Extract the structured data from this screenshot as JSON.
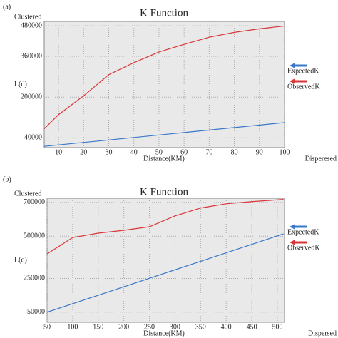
{
  "chart_data": [
    {
      "type": "line",
      "panel_label": "(a)",
      "title": "K Function",
      "y_top_label": "Clustered",
      "x_end_label": "Disperesed",
      "ylabel": "L(d)",
      "xlabel": "Distance(KM)",
      "xlim": [
        4.3,
        100
      ],
      "xticks": [
        10,
        20,
        30,
        40,
        50,
        60,
        70,
        80,
        90,
        100
      ],
      "ylim": [
        2000,
        497000
      ],
      "yticks": [
        40000,
        200000,
        360000,
        480000
      ],
      "grid": true,
      "series": [
        {
          "name": "ExpectedK",
          "color": "#3a78c9",
          "x": [
            4.3,
            100
          ],
          "values": [
            7000,
            100000
          ]
        },
        {
          "name": "ObservedK",
          "color": "#d9363a",
          "x": [
            4.3,
            10,
            20,
            30,
            40,
            50,
            60,
            70,
            80,
            90,
            100
          ],
          "values": [
            76000,
            131000,
            205000,
            288000,
            335000,
            377000,
            407000,
            435000,
            454000,
            468000,
            479000
          ]
        }
      ]
    },
    {
      "type": "line",
      "panel_label": "(b)",
      "title": "K Function",
      "y_top_label": "Clustered",
      "x_end_label": "Dispersed",
      "ylabel": "L(d)",
      "xlabel": "Distance(KM)",
      "xlim": [
        50,
        514
      ],
      "xticks": [
        50,
        100,
        150,
        200,
        250,
        300,
        350,
        400,
        450,
        500
      ],
      "ylim": [
        -10000,
        725000
      ],
      "yticks": [
        50000,
        250000,
        500000,
        700000
      ],
      "grid": true,
      "series": [
        {
          "name": "ExpectedK",
          "color": "#3a78c9",
          "x": [
            50,
            512
          ],
          "values": [
            50000,
            514000
          ]
        },
        {
          "name": "ObservedK",
          "color": "#d9363a",
          "x": [
            50,
            100,
            150,
            200,
            250,
            300,
            350,
            400,
            450,
            512
          ],
          "values": [
            395000,
            492000,
            518000,
            535000,
            556000,
            620000,
            667000,
            692000,
            705000,
            718000
          ]
        }
      ]
    }
  ]
}
